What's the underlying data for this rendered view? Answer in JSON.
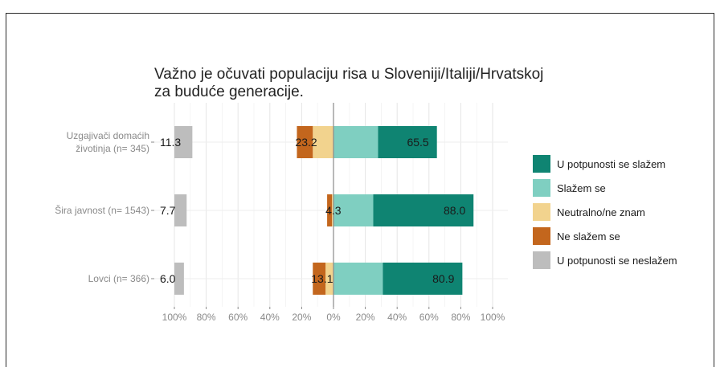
{
  "chart_data": {
    "type": "bar",
    "stacked": "diverging",
    "title": "Važno je očuvati populaciju risa u Sloveniji/Italiji/Hrvatskoj za buduće generacije.",
    "title_lines": [
      "Važno je očuvati populaciju risa u Sloveniji/Italiji/Hrvatskoj",
      "za buduće generacije."
    ],
    "categories": [
      "Uzgajivači domaćih životinja (n= 345)",
      "Šira javnost (n= 1543)",
      "Lovci (n= 366)"
    ],
    "category_lines": [
      [
        "Uzgajivači domaćih",
        "životinja (n= 345)"
      ],
      [
        "Šira javnost (n= 1543)"
      ],
      [
        "Lovci (n= 366)"
      ]
    ],
    "series": [
      {
        "name": "U potpunosti se slažem",
        "color": "#0f8472",
        "values": [
          37,
          63,
          50
        ],
        "side": "positive"
      },
      {
        "name": "Slažem se",
        "color": "#7fcfc1",
        "values": [
          28,
          25,
          31
        ],
        "side": "positive"
      },
      {
        "name": "Neutralno/ne znam",
        "color": "#f2d38e",
        "values": [
          13,
          1,
          5
        ],
        "side": "negative"
      },
      {
        "name": "Ne slažem se",
        "color": "#c3661d",
        "values": [
          10,
          3,
          8
        ],
        "side": "negative"
      },
      {
        "name": "U potpunosti se neslažem",
        "color": "#bdbdbd",
        "values": [
          11.3,
          7.7,
          6.0
        ],
        "side": "neutral"
      }
    ],
    "labels": {
      "neutral": [
        "11.3",
        "7.7",
        "6.0"
      ],
      "negative": [
        "23.2",
        "4.3",
        "13.1"
      ],
      "positive": [
        "65.5",
        "88.0",
        "80.9"
      ]
    },
    "x_ticks": [
      "100%",
      "80%",
      "60%",
      "40%",
      "20%",
      "0%",
      "20%",
      "40%",
      "60%",
      "80%",
      "100%"
    ],
    "xlim": [
      -100,
      100
    ],
    "legend_position": "right",
    "grid": true
  }
}
